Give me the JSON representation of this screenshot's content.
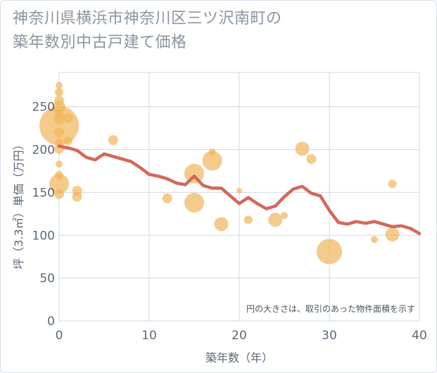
{
  "title_line1": "神奈川県横浜市神奈川区三ツ沢南町の",
  "title_line2": "築年数別中古戸建て価格",
  "note": "円の大きさは、取引のあった物件面積を示す",
  "colors": {
    "bubble": "#f1b55a",
    "line": "#d4675a",
    "grid": "#cfd9e3",
    "frame": "#d8dde3"
  },
  "chart_data": {
    "type": "scatter",
    "xlabel": "築年数（年）",
    "ylabel": "坪（3.3㎡）単価（万円）",
    "xlim": [
      0,
      40
    ],
    "ylim": [
      0,
      290
    ],
    "x_ticks": [
      0,
      10,
      20,
      30,
      40
    ],
    "y_ticks": [
      0,
      50,
      100,
      150,
      200,
      250
    ],
    "grid": true,
    "series": [
      {
        "type": "bubble",
        "points": [
          {
            "x": 0,
            "y": 275,
            "r": 5
          },
          {
            "x": 0,
            "y": 267,
            "r": 6
          },
          {
            "x": 0,
            "y": 257,
            "r": 7
          },
          {
            "x": 0,
            "y": 250,
            "r": 9
          },
          {
            "x": 0,
            "y": 242,
            "r": 6
          },
          {
            "x": 0,
            "y": 236,
            "r": 8
          },
          {
            "x": 0,
            "y": 228,
            "r": 28
          },
          {
            "x": 0,
            "y": 220,
            "r": 7
          },
          {
            "x": 0,
            "y": 208,
            "r": 6
          },
          {
            "x": 0,
            "y": 201,
            "r": 7
          },
          {
            "x": 0,
            "y": 183,
            "r": 5
          },
          {
            "x": 0,
            "y": 170,
            "r": 6
          },
          {
            "x": 0,
            "y": 160,
            "r": 14
          },
          {
            "x": 0,
            "y": 148,
            "r": 7
          },
          {
            "x": 1,
            "y": 237,
            "r": 7
          },
          {
            "x": 1,
            "y": 210,
            "r": 6
          },
          {
            "x": 2,
            "y": 152,
            "r": 7
          },
          {
            "x": 2,
            "y": 145,
            "r": 7
          },
          {
            "x": 6,
            "y": 211,
            "r": 7
          },
          {
            "x": 12,
            "y": 143,
            "r": 7
          },
          {
            "x": 15,
            "y": 172,
            "r": 14
          },
          {
            "x": 15,
            "y": 138,
            "r": 14
          },
          {
            "x": 17,
            "y": 197,
            "r": 5
          },
          {
            "x": 17,
            "y": 187,
            "r": 14
          },
          {
            "x": 18,
            "y": 113,
            "r": 10
          },
          {
            "x": 20,
            "y": 152,
            "r": 4
          },
          {
            "x": 21,
            "y": 118,
            "r": 6
          },
          {
            "x": 24,
            "y": 118,
            "r": 10
          },
          {
            "x": 25,
            "y": 123,
            "r": 5
          },
          {
            "x": 27,
            "y": 201,
            "r": 10
          },
          {
            "x": 28,
            "y": 189,
            "r": 7
          },
          {
            "x": 30,
            "y": 81,
            "r": 18
          },
          {
            "x": 35,
            "y": 95,
            "r": 5
          },
          {
            "x": 37,
            "y": 160,
            "r": 6
          },
          {
            "x": 37,
            "y": 101,
            "r": 10
          }
        ]
      },
      {
        "type": "line",
        "x": [
          0,
          1,
          2,
          3,
          4,
          5,
          6,
          7,
          8,
          9,
          10,
          11,
          12,
          13,
          14,
          15,
          16,
          17,
          18,
          19,
          20,
          21,
          22,
          23,
          24,
          25,
          26,
          27,
          28,
          29,
          30,
          31,
          32,
          33,
          34,
          35,
          36,
          37,
          38,
          39,
          40
        ],
        "y": [
          204,
          202,
          199,
          191,
          188,
          195,
          192,
          189,
          186,
          179,
          171,
          169,
          166,
          161,
          159,
          169,
          158,
          155,
          155,
          146,
          137,
          144,
          137,
          131,
          134,
          145,
          154,
          157,
          149,
          146,
          129,
          115,
          113,
          116,
          114,
          116,
          113,
          110,
          111,
          108,
          102
        ]
      }
    ]
  }
}
